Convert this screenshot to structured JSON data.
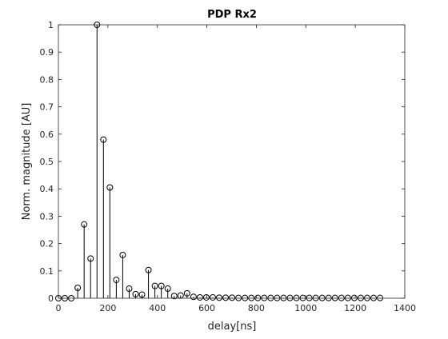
{
  "chart_data": {
    "type": "stem",
    "title": "PDP Rx2",
    "xlabel": "delay[ns]",
    "ylabel": "Norm. magnitude [AU]",
    "xlim": [
      0,
      1400
    ],
    "ylim": [
      0,
      1
    ],
    "xticks": [
      0,
      200,
      400,
      600,
      800,
      1000,
      1200,
      1400
    ],
    "yticks": [
      0,
      0.1,
      0.2,
      0.3,
      0.4,
      0.5,
      0.6,
      0.7,
      0.8,
      0.9,
      1
    ],
    "xtick_labels": [
      "0",
      "200",
      "400",
      "600",
      "800",
      "1000",
      "1200",
      "1400"
    ],
    "ytick_labels": [
      "0",
      "0.1",
      "0.2",
      "0.3",
      "0.4",
      "0.5",
      "0.6",
      "0.7",
      "0.8",
      "0.9",
      "1"
    ],
    "grid": false,
    "marker": "circle",
    "color": "#000000",
    "x": [
      0,
      26,
      52,
      78,
      104,
      130,
      156,
      182,
      208,
      234,
      260,
      286,
      312,
      338,
      364,
      390,
      416,
      442,
      468,
      494,
      520,
      546,
      572,
      598,
      624,
      650,
      676,
      702,
      728,
      754,
      780,
      806,
      832,
      858,
      884,
      910,
      936,
      962,
      988,
      1014,
      1040,
      1066,
      1092,
      1118,
      1144,
      1170,
      1196,
      1222,
      1248,
      1274,
      1300
    ],
    "y": [
      0.0,
      0.0,
      0.0,
      0.038,
      0.27,
      0.145,
      1.0,
      0.58,
      0.405,
      0.067,
      0.158,
      0.035,
      0.015,
      0.013,
      0.103,
      0.045,
      0.045,
      0.035,
      0.008,
      0.01,
      0.018,
      0.005,
      0.003,
      0.003,
      0.003,
      0.002,
      0.002,
      0.002,
      0.001,
      0.001,
      0.001,
      0.001,
      0.001,
      0.001,
      0.001,
      0.001,
      0.001,
      0.001,
      0.001,
      0.001,
      0.001,
      0.001,
      0.001,
      0.001,
      0.001,
      0.001,
      0.001,
      0.001,
      0.001,
      0.001,
      0.001
    ]
  }
}
